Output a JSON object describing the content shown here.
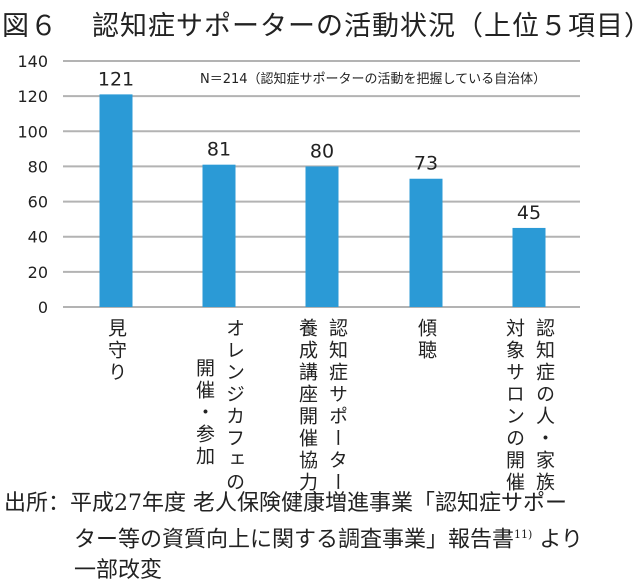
{
  "title": {
    "figure": "図６",
    "text": "認知症サポーターの活動状況（上位５項目）"
  },
  "chart_data": {
    "type": "bar",
    "title": "認知症サポーターの活動状況（上位５項目）",
    "note": "N＝214（認知症サポーターの活動を把握している自治体）",
    "categories": [
      [
        "見守り"
      ],
      [
        "オレンジカフェの",
        "開催・参加"
      ],
      [
        "認知症サポーター",
        "養成講座開催協力"
      ],
      [
        "傾聴"
      ],
      [
        "認知症の人・家族",
        "対象サロンの開催"
      ]
    ],
    "values": [
      121,
      81,
      80,
      73,
      45
    ],
    "ylim": [
      0,
      140
    ],
    "yticks": [
      0,
      20,
      40,
      60,
      80,
      100,
      120,
      140
    ],
    "grid": true,
    "bar_color": "#2b9ad6",
    "grid_color": "#b3b3b3"
  },
  "source": {
    "line1": "出所：平成27年度 老人保険健康増進事業「認知症サポー",
    "line2": "ター等の資質向上に関する調査事業」報告書",
    "ref": "11)",
    "line2b": "より",
    "line3": "一部改変"
  }
}
